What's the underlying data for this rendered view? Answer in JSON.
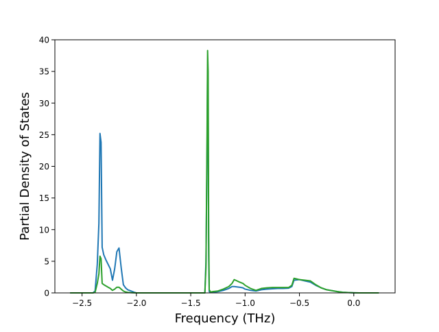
{
  "chart_data": {
    "type": "line",
    "title": "",
    "xlabel": "Frequency (THz)",
    "ylabel": "Partial Density of States",
    "xlim": [
      -2.75,
      0.38
    ],
    "ylim": [
      0,
      40
    ],
    "x_ticks": [
      -2.5,
      -2.0,
      -1.5,
      -1.0,
      -0.5,
      0.0
    ],
    "x_tick_labels": [
      "−2.5",
      "−2.0",
      "−1.5",
      "−1.0",
      "−0.5",
      "0.0"
    ],
    "y_ticks": [
      0,
      5,
      10,
      15,
      20,
      25,
      30,
      35,
      40
    ],
    "y_tick_labels": [
      "0",
      "5",
      "10",
      "15",
      "20",
      "25",
      "30",
      "35",
      "40"
    ],
    "grid": false,
    "legend": "none",
    "series": [
      {
        "color": "#1f77b4",
        "x": [
          -2.61,
          -2.4,
          -2.38,
          -2.36,
          -2.345,
          -2.335,
          -2.325,
          -2.315,
          -2.3,
          -2.28,
          -2.26,
          -2.24,
          -2.22,
          -2.2,
          -2.18,
          -2.16,
          -2.14,
          -2.12,
          -2.1,
          -2.08,
          -2.05,
          -2.02,
          -2.0,
          -1.98,
          -1.8,
          -1.6,
          -1.4,
          -1.37,
          -1.36,
          -1.35,
          -1.345,
          -1.34,
          -1.335,
          -1.33,
          -1.32,
          -1.31,
          -1.3,
          -1.25,
          -1.2,
          -1.15,
          -1.12,
          -1.1,
          -1.05,
          -1.02,
          -1.0,
          -0.95,
          -0.9,
          -0.85,
          -0.8,
          -0.75,
          -0.7,
          -0.65,
          -0.6,
          -0.57,
          -0.55,
          -0.5,
          -0.45,
          -0.4,
          -0.35,
          -0.3,
          -0.25,
          -0.2,
          -0.15,
          -0.1,
          -0.05,
          0.0,
          0.05,
          0.1,
          0.15,
          0.2,
          0.23
        ],
        "y": [
          0,
          0,
          0.3,
          4.5,
          11,
          25.2,
          23.8,
          7.2,
          6.0,
          5.2,
          4.5,
          3.8,
          2.0,
          3.8,
          6.5,
          7.1,
          4.0,
          1.3,
          0.8,
          0.5,
          0.3,
          0.1,
          0,
          0,
          0,
          0,
          0,
          0,
          5.0,
          22.0,
          36.0,
          29.0,
          6.0,
          0.2,
          0.1,
          0.1,
          0.1,
          0.2,
          0.4,
          0.7,
          1.0,
          1.0,
          0.9,
          0.8,
          0.6,
          0.4,
          0.3,
          0.5,
          0.6,
          0.65,
          0.7,
          0.7,
          0.75,
          1.0,
          2.0,
          2.1,
          1.9,
          1.7,
          1.2,
          0.8,
          0.5,
          0.35,
          0.2,
          0.1,
          0.05,
          0.02,
          0,
          0,
          0,
          0,
          0
        ]
      },
      {
        "color": "#2ca02c",
        "x": [
          -2.61,
          -2.4,
          -2.38,
          -2.36,
          -2.345,
          -2.335,
          -2.325,
          -2.315,
          -2.3,
          -2.28,
          -2.26,
          -2.24,
          -2.22,
          -2.2,
          -2.18,
          -2.16,
          -2.14,
          -2.12,
          -2.1,
          -2.08,
          -2.05,
          -2.02,
          -2.0,
          -1.98,
          -1.8,
          -1.6,
          -1.4,
          -1.37,
          -1.36,
          -1.35,
          -1.345,
          -1.34,
          -1.335,
          -1.33,
          -1.32,
          -1.31,
          -1.3,
          -1.25,
          -1.2,
          -1.15,
          -1.12,
          -1.1,
          -1.05,
          -1.02,
          -1.0,
          -0.95,
          -0.9,
          -0.85,
          -0.8,
          -0.75,
          -0.7,
          -0.65,
          -0.6,
          -0.57,
          -0.55,
          -0.5,
          -0.45,
          -0.4,
          -0.35,
          -0.3,
          -0.25,
          -0.2,
          -0.15,
          -0.1,
          -0.05,
          0.0,
          0.05,
          0.1,
          0.15,
          0.2,
          0.23
        ],
        "y": [
          0,
          0,
          0.1,
          1.5,
          3.0,
          5.8,
          5.4,
          1.5,
          1.3,
          1.1,
          0.9,
          0.7,
          0.4,
          0.6,
          0.9,
          0.9,
          0.6,
          0.3,
          0.15,
          0.08,
          0.04,
          0.02,
          0,
          0,
          0,
          0,
          0,
          0,
          4.0,
          25.0,
          38.3,
          35.0,
          9.0,
          0.5,
          0.2,
          0.15,
          0.2,
          0.3,
          0.6,
          1.0,
          1.5,
          2.1,
          1.7,
          1.5,
          1.2,
          0.7,
          0.4,
          0.7,
          0.8,
          0.85,
          0.85,
          0.85,
          0.85,
          1.2,
          2.3,
          2.1,
          2.0,
          1.9,
          1.3,
          0.8,
          0.5,
          0.35,
          0.2,
          0.1,
          0.05,
          0.02,
          0,
          0,
          0,
          0,
          0
        ]
      }
    ]
  }
}
